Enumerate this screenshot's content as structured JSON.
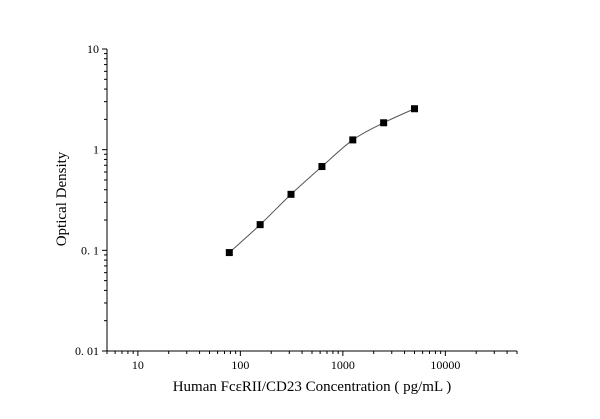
{
  "chart_data": {
    "type": "scatter",
    "title": "",
    "xlabel": "Human FcεRII/CD23 Concentration ( pg/mL )",
    "ylabel": "Optical Density",
    "x_scale": "log",
    "y_scale": "log",
    "xlim": [
      5,
      50000
    ],
    "ylim": [
      0.01,
      10
    ],
    "x_ticks": [
      10,
      100,
      1000,
      10000
    ],
    "x_tick_labels": [
      "10",
      "100",
      "1000",
      "10000"
    ],
    "y_ticks": [
      0.01,
      0.1,
      1,
      10
    ],
    "y_tick_labels": [
      "0. 01",
      "0. 1",
      "1",
      "10"
    ],
    "grid": false,
    "legend": "none",
    "series": [
      {
        "x": [
          78,
          156,
          312,
          625,
          1250,
          2500,
          5000
        ],
        "y": [
          0.095,
          0.18,
          0.36,
          0.68,
          1.25,
          1.85,
          2.55
        ],
        "marker": "square",
        "fit_line": true,
        "color": "#000000"
      }
    ]
  }
}
